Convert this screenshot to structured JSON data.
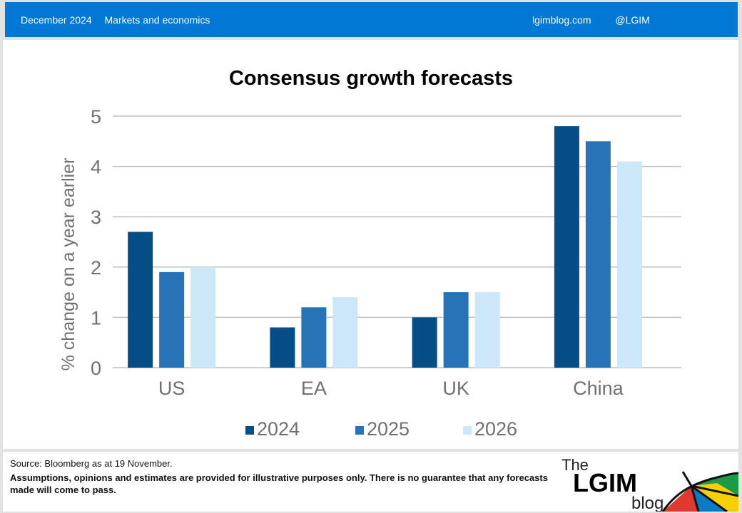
{
  "header": {
    "date": "December 2024",
    "category": "Markets and economics",
    "site": "lgimblog.com",
    "handle": "@LGIM"
  },
  "colors": {
    "header_bg": "#0078d4",
    "series_2024": "#044d86",
    "series_2025": "#2872b8",
    "series_2026": "#cbe7f8",
    "grid": "#bfbfbf",
    "axis_text": "#707070"
  },
  "chart_data": {
    "type": "bar",
    "title": "Consensus growth forecasts",
    "xlabel": "",
    "ylabel": "% change on a year earlier",
    "ylim": [
      0,
      5
    ],
    "yticks": [
      0,
      1,
      2,
      3,
      4,
      5
    ],
    "grid": true,
    "legend_position": "bottom",
    "categories": [
      "US",
      "EA",
      "UK",
      "China"
    ],
    "series": [
      {
        "name": "2024",
        "color": "#044d86",
        "values": [
          2.7,
          0.8,
          1.0,
          4.8
        ]
      },
      {
        "name": "2025",
        "color": "#2872b8",
        "values": [
          1.9,
          1.2,
          1.5,
          4.5
        ]
      },
      {
        "name": "2026",
        "color": "#cbe7f8",
        "values": [
          2.0,
          1.4,
          1.5,
          4.1
        ]
      }
    ]
  },
  "footer": {
    "source": "Source: Bloomberg as at 19 November.",
    "disclaimer": "Assumptions,  opinions and estimates are provided for illustrative purposes only.  There is no guarantee that any forecasts made will come to pass."
  },
  "logo": {
    "the": "The",
    "name": "LGIM",
    "blog": "blog"
  }
}
